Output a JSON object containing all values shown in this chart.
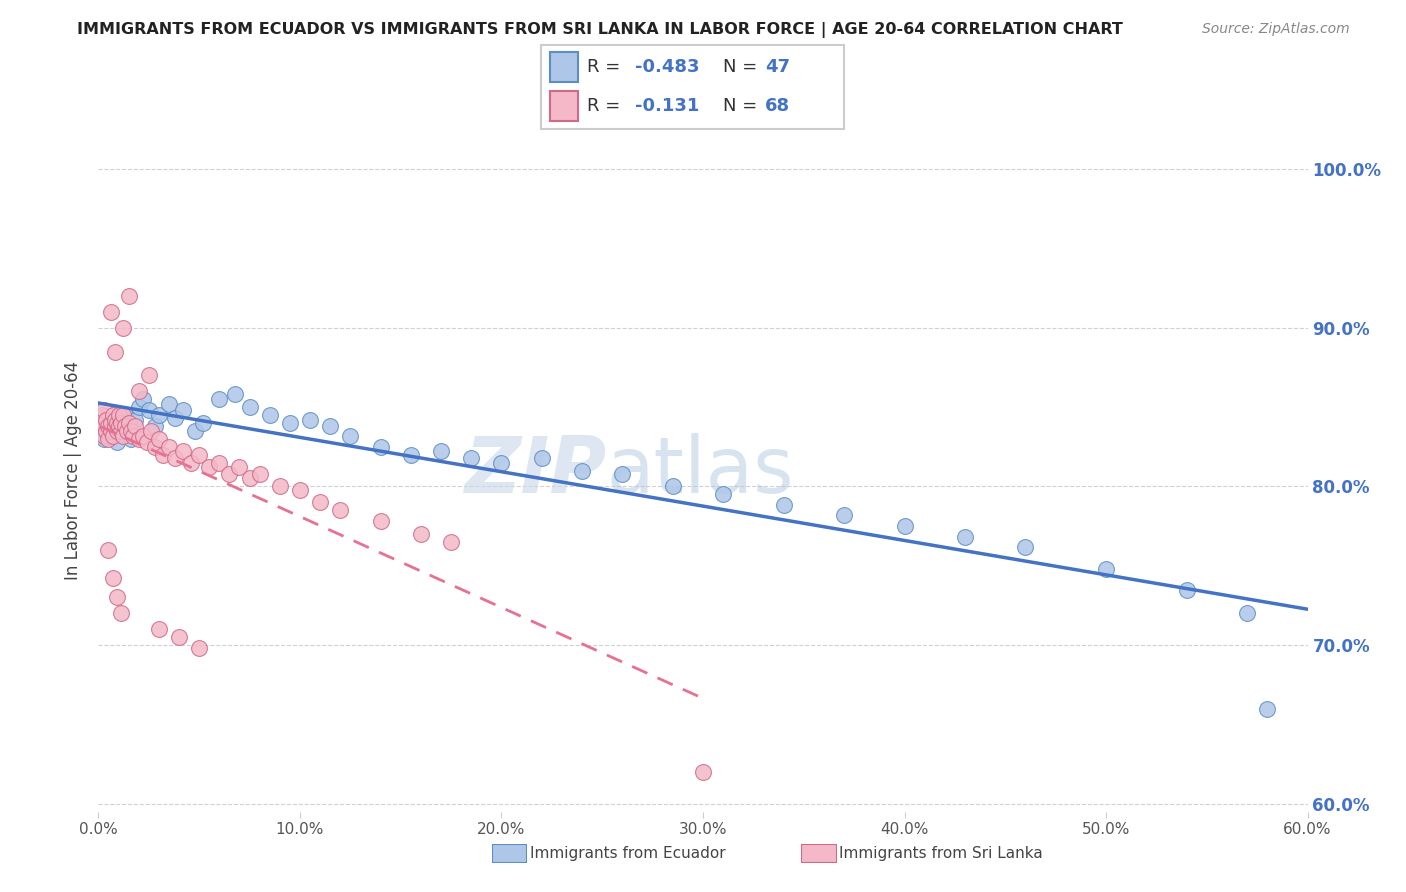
{
  "title": "IMMIGRANTS FROM ECUADOR VS IMMIGRANTS FROM SRI LANKA IN LABOR FORCE | AGE 20-64 CORRELATION CHART",
  "source": "Source: ZipAtlas.com",
  "ylabel": "In Labor Force | Age 20-64",
  "xlim": [
    0.0,
    0.6
  ],
  "ylim": [
    0.595,
    1.025
  ],
  "yticks": [
    0.6,
    0.7,
    0.8,
    0.9,
    1.0
  ],
  "ytick_labels": [
    "60.0%",
    "70.0%",
    "80.0%",
    "90.0%",
    "100.0%"
  ],
  "xticks": [
    0.0,
    0.1,
    0.2,
    0.3,
    0.4,
    0.5,
    0.6
  ],
  "xtick_labels": [
    "0.0%",
    "10.0%",
    "20.0%",
    "30.0%",
    "40.0%",
    "50.0%",
    "60.0%"
  ],
  "ecuador_color": "#aec6e8",
  "ecuador_edge": "#5b8ec4",
  "srilanka_color": "#f4b8c8",
  "srilanka_edge": "#d06888",
  "line_ecuador_color": "#4472c4",
  "line_srilanka_color": "#e87090",
  "ecuador_R": -0.483,
  "ecuador_N": 47,
  "srilanka_R": -0.131,
  "srilanka_N": 68,
  "ecuador_x": [
    0.003,
    0.005,
    0.007,
    0.009,
    0.01,
    0.012,
    0.013,
    0.015,
    0.016,
    0.018,
    0.02,
    0.022,
    0.025,
    0.028,
    0.03,
    0.035,
    0.038,
    0.042,
    0.048,
    0.052,
    0.06,
    0.068,
    0.075,
    0.085,
    0.095,
    0.105,
    0.115,
    0.125,
    0.14,
    0.155,
    0.17,
    0.185,
    0.2,
    0.22,
    0.24,
    0.26,
    0.285,
    0.31,
    0.34,
    0.37,
    0.4,
    0.43,
    0.46,
    0.5,
    0.54,
    0.57,
    0.58
  ],
  "ecuador_y": [
    0.83,
    0.832,
    0.835,
    0.828,
    0.84,
    0.838,
    0.845,
    0.836,
    0.83,
    0.842,
    0.85,
    0.855,
    0.848,
    0.838,
    0.845,
    0.852,
    0.843,
    0.848,
    0.835,
    0.84,
    0.855,
    0.858,
    0.85,
    0.845,
    0.84,
    0.842,
    0.838,
    0.832,
    0.825,
    0.82,
    0.822,
    0.818,
    0.815,
    0.818,
    0.81,
    0.808,
    0.8,
    0.795,
    0.788,
    0.782,
    0.775,
    0.768,
    0.762,
    0.748,
    0.735,
    0.72,
    0.66
  ],
  "srilanka_x": [
    0.001,
    0.002,
    0.002,
    0.003,
    0.003,
    0.004,
    0.004,
    0.005,
    0.005,
    0.006,
    0.006,
    0.007,
    0.007,
    0.008,
    0.008,
    0.009,
    0.009,
    0.01,
    0.01,
    0.011,
    0.011,
    0.012,
    0.012,
    0.013,
    0.014,
    0.015,
    0.016,
    0.017,
    0.018,
    0.02,
    0.022,
    0.024,
    0.026,
    0.028,
    0.03,
    0.032,
    0.035,
    0.038,
    0.042,
    0.046,
    0.05,
    0.055,
    0.06,
    0.065,
    0.07,
    0.075,
    0.08,
    0.09,
    0.1,
    0.11,
    0.12,
    0.14,
    0.16,
    0.175,
    0.012,
    0.008,
    0.015,
    0.006,
    0.02,
    0.025,
    0.005,
    0.007,
    0.009,
    0.011,
    0.03,
    0.04,
    0.05,
    0.3
  ],
  "srilanka_y": [
    0.84,
    0.838,
    0.845,
    0.832,
    0.848,
    0.835,
    0.842,
    0.83,
    0.838,
    0.835,
    0.84,
    0.832,
    0.845,
    0.838,
    0.842,
    0.835,
    0.84,
    0.838,
    0.845,
    0.835,
    0.84,
    0.832,
    0.845,
    0.838,
    0.835,
    0.84,
    0.835,
    0.832,
    0.838,
    0.83,
    0.832,
    0.828,
    0.835,
    0.825,
    0.83,
    0.82,
    0.825,
    0.818,
    0.822,
    0.815,
    0.82,
    0.812,
    0.815,
    0.808,
    0.812,
    0.805,
    0.808,
    0.8,
    0.798,
    0.79,
    0.785,
    0.778,
    0.77,
    0.765,
    0.9,
    0.885,
    0.92,
    0.91,
    0.86,
    0.87,
    0.76,
    0.742,
    0.73,
    0.72,
    0.71,
    0.705,
    0.698,
    0.62
  ]
}
